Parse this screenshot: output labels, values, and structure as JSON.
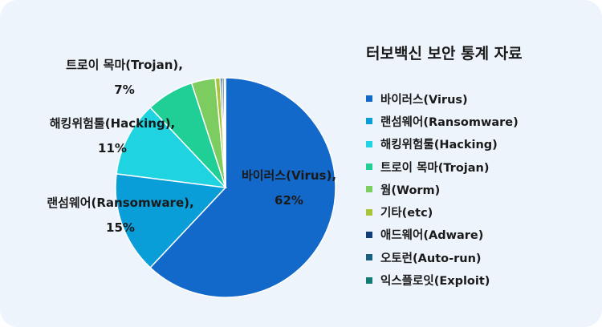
{
  "chart_data": {
    "type": "pie",
    "title": "터보백신 보안 통계 자료",
    "slices": [
      {
        "name": "바이러스(Virus)",
        "value": 62,
        "color": "#1369c9",
        "label_line1": "바이러스(Virus),",
        "label_line2": "62%"
      },
      {
        "name": "랜섬웨어(Ransomware)",
        "value": 15,
        "color": "#0a9ed9",
        "label_line1": "랜섬웨어(Ransomware),",
        "label_line2": "15%"
      },
      {
        "name": "해킹위험툴(Hacking)",
        "value": 11,
        "color": "#1fd3e0",
        "label_line1": "해킹위험툴(Hacking),",
        "label_line2": "11%"
      },
      {
        "name": "트로이 목마(Trojan)",
        "value": 7,
        "color": "#1fcf95",
        "label_line1": "트로이 목마(Trojan),",
        "label_line2": "7%"
      },
      {
        "name": "웜(Worm)",
        "value": 3.5,
        "color": "#7ccc5f",
        "label_line1": "",
        "label_line2": ""
      },
      {
        "name": "기타(etc)",
        "value": 0.7,
        "color": "#a8c43a",
        "label_line1": "",
        "label_line2": ""
      },
      {
        "name": "애드웨어(Adware)",
        "value": 0.3,
        "color": "#123e78",
        "label_line1": "",
        "label_line2": ""
      },
      {
        "name": "오토런(Auto-run)",
        "value": 0.3,
        "color": "#1a5e80",
        "label_line1": "",
        "label_line2": ""
      },
      {
        "name": "익스플로잇(Exploit)",
        "value": 0.2,
        "color": "#137a73",
        "label_line1": "",
        "label_line2": ""
      }
    ],
    "legend_position": "right"
  }
}
